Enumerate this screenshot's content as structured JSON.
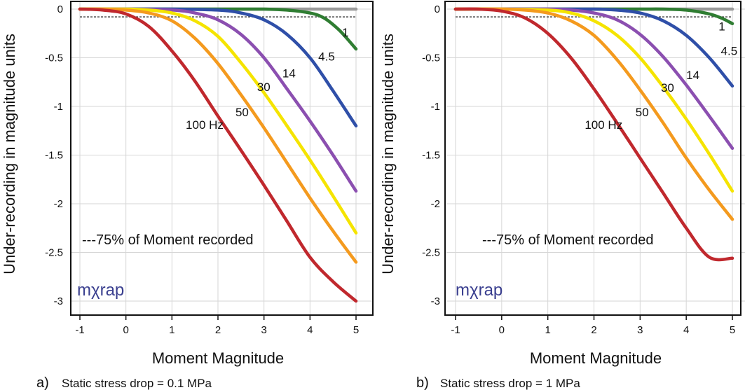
{
  "chart_data": [
    {
      "type": "line",
      "panel_letter": "a)",
      "caption": "Static stress drop = 0.1 MPa",
      "xlabel": "Moment Magnitude",
      "ylabel": "Under-recording in magnitude units",
      "xlim": [
        -1,
        5
      ],
      "ylim": [
        -3,
        0
      ],
      "x_ticks": [
        "-1",
        "0",
        "1",
        "2",
        "3",
        "4",
        "5"
      ],
      "y_ticks": [
        "0",
        "-0.5",
        "-1",
        "-1.5",
        "-2",
        "-2.5",
        "-3"
      ],
      "grid": true,
      "logo": "mχrap",
      "legend": {
        "text": "---75% of Moment recorded",
        "position": "bottom-left"
      },
      "reference_line": {
        "name": "75% of Moment recorded",
        "y": -0.08,
        "x": [
          -1,
          5
        ],
        "color": "#444444",
        "style": "dashed"
      },
      "series": [
        {
          "label": "",
          "color": "#9a9a9a",
          "x": [
            -1,
            0,
            1,
            2,
            3,
            4,
            5
          ],
          "y": [
            0,
            0,
            0,
            0,
            0,
            0,
            0
          ]
        },
        {
          "label": "1",
          "color": "#2f7d32",
          "x": [
            -1,
            0,
            1,
            2,
            3,
            3.5,
            4,
            4.3,
            4.6,
            4.8,
            5
          ],
          "y": [
            0,
            0,
            0,
            0,
            0,
            -0.01,
            -0.04,
            -0.09,
            -0.2,
            -0.3,
            -0.41
          ]
        },
        {
          "label": "4.5",
          "color": "#2f4fa8",
          "x": [
            -1,
            0,
            1,
            2,
            2.5,
            3,
            3.5,
            4,
            4.5,
            5
          ],
          "y": [
            0,
            0,
            0,
            -0.01,
            -0.04,
            -0.11,
            -0.26,
            -0.5,
            -0.84,
            -1.2
          ]
        },
        {
          "label": "14",
          "color": "#8b4fb0",
          "x": [
            -1,
            0,
            1,
            1.5,
            2,
            2.5,
            3,
            3.5,
            4,
            4.5,
            5
          ],
          "y": [
            0,
            0,
            -0.01,
            -0.04,
            -0.11,
            -0.26,
            -0.5,
            -0.82,
            -1.15,
            -1.5,
            -1.87
          ]
        },
        {
          "label": "30",
          "color": "#f5e400",
          "x": [
            -1,
            0,
            0.5,
            1,
            1.5,
            2,
            2.5,
            3,
            3.5,
            4,
            4.5,
            5
          ],
          "y": [
            0,
            0,
            -0.01,
            -0.04,
            -0.12,
            -0.28,
            -0.55,
            -0.86,
            -1.2,
            -1.55,
            -1.92,
            -2.3
          ]
        },
        {
          "label": "50",
          "color": "#f49a1e",
          "x": [
            -1,
            -0.5,
            0,
            0.5,
            1,
            1.5,
            2,
            2.5,
            3,
            3.5,
            4,
            4.5,
            5
          ],
          "y": [
            0,
            0,
            -0.01,
            -0.04,
            -0.12,
            -0.3,
            -0.56,
            -0.88,
            -1.22,
            -1.58,
            -1.94,
            -2.28,
            -2.6
          ]
        },
        {
          "label": "100 Hz",
          "color": "#c0282d",
          "x": [
            -1,
            -0.5,
            0,
            0.5,
            1,
            1.5,
            2,
            2.5,
            3,
            3.5,
            4,
            4.5,
            5
          ],
          "y": [
            0,
            -0.01,
            -0.05,
            -0.18,
            -0.43,
            -0.74,
            -1.1,
            -1.45,
            -1.81,
            -2.18,
            -2.55,
            -2.8,
            -3.0
          ]
        }
      ],
      "curve_labels": [
        {
          "text": "1",
          "x": 4.7,
          "y": -0.28
        },
        {
          "text": "4.5",
          "x": 4.18,
          "y": -0.53
        },
        {
          "text": "14",
          "x": 3.4,
          "y": -0.7
        },
        {
          "text": "30",
          "x": 2.85,
          "y": -0.84
        },
        {
          "text": "50",
          "x": 2.38,
          "y": -1.1
        },
        {
          "text": "100 Hz",
          "x": 1.3,
          "y": -1.23
        }
      ]
    },
    {
      "type": "line",
      "panel_letter": "b)",
      "caption": "Static stress drop = 1 MPa",
      "xlabel": "Moment Magnitude",
      "ylabel": "Under-recording in magnitude units",
      "xlim": [
        -1,
        5
      ],
      "ylim": [
        -3,
        0
      ],
      "x_ticks": [
        "-1",
        "0",
        "1",
        "2",
        "3",
        "4",
        "5"
      ],
      "y_ticks": [
        "0",
        "-0.5",
        "-1",
        "-1.5",
        "-2",
        "-2.5",
        "-3"
      ],
      "grid": true,
      "logo": "mχrap",
      "legend": {
        "text": "---75% of Moment recorded",
        "position": "bottom-left"
      },
      "reference_line": {
        "name": "75% of Moment recorded",
        "y": -0.08,
        "x": [
          -1,
          5
        ],
        "color": "#444444",
        "style": "dashed"
      },
      "series": [
        {
          "label": "",
          "color": "#9a9a9a",
          "x": [
            -1,
            0,
            1,
            2,
            3,
            4,
            5
          ],
          "y": [
            0,
            0,
            0,
            0,
            0,
            0,
            0
          ]
        },
        {
          "label": "1",
          "color": "#2f7d32",
          "x": [
            -1,
            0,
            1,
            2,
            3,
            3.5,
            4,
            4.5,
            4.8,
            5
          ],
          "y": [
            0,
            0,
            0,
            0,
            0,
            0,
            -0.01,
            -0.05,
            -0.1,
            -0.15
          ]
        },
        {
          "label": "4.5",
          "color": "#2f4fa8",
          "x": [
            -1,
            0,
            1,
            2,
            2.5,
            3,
            3.5,
            4,
            4.5,
            5
          ],
          "y": [
            0,
            0,
            0,
            0,
            -0.01,
            -0.04,
            -0.12,
            -0.27,
            -0.5,
            -0.79
          ]
        },
        {
          "label": "14",
          "color": "#8b4fb0",
          "x": [
            -1,
            0,
            1,
            1.5,
            2,
            2.5,
            3,
            3.5,
            4,
            4.5,
            5
          ],
          "y": [
            0,
            0,
            0,
            -0.01,
            -0.04,
            -0.11,
            -0.26,
            -0.49,
            -0.78,
            -1.1,
            -1.43
          ]
        },
        {
          "label": "30",
          "color": "#f5e400",
          "x": [
            -1,
            0,
            1,
            1.5,
            2,
            2.5,
            3,
            3.5,
            4,
            4.5,
            5
          ],
          "y": [
            0,
            0,
            -0.01,
            -0.04,
            -0.12,
            -0.27,
            -0.5,
            -0.8,
            -1.13,
            -1.49,
            -1.87
          ]
        },
        {
          "label": "50",
          "color": "#f49a1e",
          "x": [
            -1,
            0,
            0.5,
            1,
            1.5,
            2,
            2.5,
            3,
            3.5,
            4,
            4.5,
            5
          ],
          "y": [
            0,
            0,
            -0.01,
            -0.04,
            -0.12,
            -0.27,
            -0.52,
            -0.83,
            -1.17,
            -1.53,
            -1.86,
            -2.16
          ]
        },
        {
          "label": "100 Hz",
          "color": "#c0282d",
          "x": [
            -1,
            -0.5,
            0,
            0.5,
            1,
            1.5,
            2,
            2.5,
            3,
            3.5,
            4,
            4.5,
            5
          ],
          "y": [
            0,
            0,
            -0.02,
            -0.09,
            -0.25,
            -0.5,
            -0.82,
            -1.17,
            -1.53,
            -1.89,
            -2.25,
            -2.55,
            -2.56
          ]
        }
      ],
      "curve_labels": [
        {
          "text": "1",
          "x": 4.7,
          "y": -0.22
        },
        {
          "text": "4.5",
          "x": 4.75,
          "y": -0.47
        },
        {
          "text": "14",
          "x": 4.0,
          "y": -0.72
        },
        {
          "text": "30",
          "x": 3.45,
          "y": -0.85
        },
        {
          "text": "50",
          "x": 2.9,
          "y": -1.1
        },
        {
          "text": "100 Hz",
          "x": 1.8,
          "y": -1.23
        }
      ]
    }
  ]
}
